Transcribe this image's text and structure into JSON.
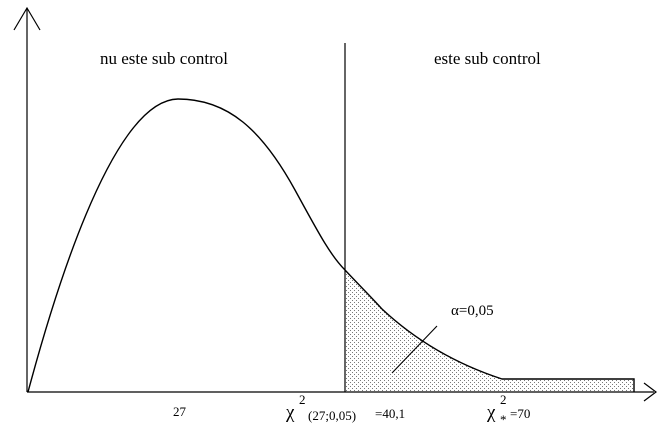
{
  "regions": {
    "left_label": "nu este sub control",
    "right_label": "este sub control"
  },
  "alpha_label": "α=0,05",
  "x_ticks": {
    "mode": "27",
    "critical": {
      "symbol": "χ",
      "power": "2",
      "subscript": "(27;0,05)",
      "value": "=40,1"
    },
    "observed": {
      "symbol": "χ",
      "power": "2",
      "subscript": "*",
      "value": "=70"
    }
  },
  "colors": {
    "line": "#000000",
    "hatch": "#777777",
    "background": "#ffffff"
  }
}
